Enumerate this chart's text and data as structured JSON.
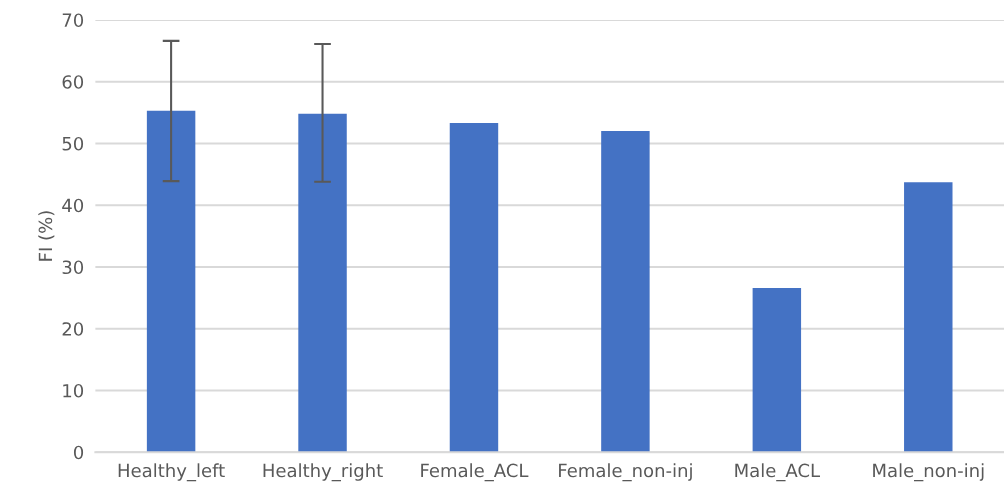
{
  "chart_data": {
    "type": "bar",
    "ylabel": "FI (%)",
    "categories": [
      "Healthy_left",
      "Healthy_right",
      "Female_ACL",
      "Female_non-inj",
      "Male_ACL",
      "Male_non-inj"
    ],
    "values": [
      55.3,
      54.8,
      53.3,
      52.0,
      26.6,
      43.7
    ],
    "errors": [
      [
        43.9,
        66.6
      ],
      [
        43.8,
        66.1
      ],
      null,
      null,
      null,
      null
    ],
    "color": "#4472c4",
    "ylim": [
      0,
      70
    ],
    "yticks": [
      0,
      10,
      20,
      30,
      40,
      50,
      60,
      70
    ],
    "grid": "y"
  }
}
